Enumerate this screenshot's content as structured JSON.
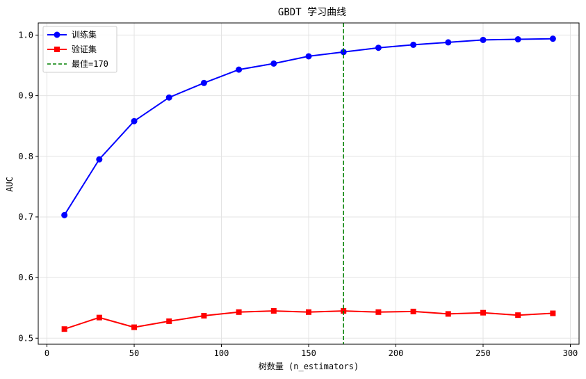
{
  "chart_data": {
    "type": "line",
    "title": "GBDT 学习曲线",
    "xlabel": "树数量 (n_estimators)",
    "ylabel": "AUC",
    "xlim": [
      -5,
      305
    ],
    "ylim": [
      0.49,
      1.02
    ],
    "xticks": [
      0,
      50,
      100,
      150,
      200,
      250,
      300
    ],
    "yticks": [
      0.5,
      0.6,
      0.7,
      0.8,
      0.9,
      1.0
    ],
    "xtick_labels": [
      "0",
      "50",
      "100",
      "150",
      "200",
      "250",
      "300"
    ],
    "ytick_labels": [
      "0.5",
      "0.6",
      "0.7",
      "0.8",
      "0.9",
      "1.0"
    ],
    "grid": true,
    "legend_position": "top-left",
    "x": [
      10,
      30,
      50,
      70,
      90,
      110,
      130,
      150,
      170,
      190,
      210,
      230,
      250,
      270,
      290
    ],
    "series": [
      {
        "name": "训练集",
        "color": "#0000ff",
        "marker": "circle",
        "values": [
          0.703,
          0.795,
          0.858,
          0.897,
          0.921,
          0.943,
          0.953,
          0.965,
          0.972,
          0.979,
          0.984,
          0.988,
          0.992,
          0.993,
          0.994
        ]
      },
      {
        "name": "验证集",
        "color": "#ff0000",
        "marker": "square",
        "values": [
          0.515,
          0.534,
          0.518,
          0.528,
          0.537,
          0.543,
          0.545,
          0.543,
          0.545,
          0.543,
          0.544,
          0.54,
          0.542,
          0.538,
          0.541
        ]
      }
    ],
    "vline": {
      "x": 170,
      "name": "最佳=170",
      "color": "#008000",
      "style": "dashed"
    }
  }
}
